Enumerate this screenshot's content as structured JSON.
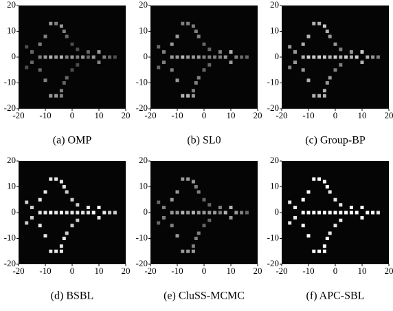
{
  "chart_data": [
    {
      "type": "heatmap",
      "title": "(a) OMP",
      "x": [
        -12,
        -10,
        -8,
        -6,
        -4,
        -2,
        0,
        2,
        4,
        6,
        8,
        12,
        14,
        16,
        -8,
        -6,
        -4,
        -3,
        -2,
        0,
        2,
        -8,
        -6,
        -4,
        -4,
        -3,
        -2,
        0,
        2,
        -10,
        -12,
        -10,
        -12,
        -17,
        -15,
        -15,
        -17,
        10,
        10,
        6
      ],
      "y": [
        0,
        0,
        0,
        0,
        0,
        0,
        0,
        0,
        0,
        0,
        0,
        0,
        0,
        0,
        13,
        13,
        12,
        10,
        8,
        5,
        3,
        -15,
        -15,
        -15,
        -13,
        -10,
        -8,
        -5,
        -3,
        8,
        5,
        -9,
        -5,
        4,
        2,
        -2,
        -4,
        2,
        -2,
        2
      ],
      "values": [
        0.5,
        0.6,
        0.7,
        0.6,
        0.7,
        0.5,
        0.6,
        0.5,
        0.6,
        0.4,
        0.6,
        0.5,
        0.4,
        0.3,
        0.6,
        0.5,
        0.6,
        0.5,
        0.4,
        0.3,
        0.3,
        0.6,
        0.6,
        0.5,
        0.5,
        0.4,
        0.4,
        0.3,
        0.3,
        0.5,
        0.5,
        0.5,
        0.4,
        0.3,
        0.4,
        0.4,
        0.3,
        0.6,
        0.5,
        0.4
      ],
      "xlim": [
        -20,
        20
      ],
      "ylim": [
        -20,
        20
      ],
      "xticks": [
        -20,
        -10,
        0,
        10,
        20
      ],
      "yticks": [
        -20,
        -10,
        0,
        10,
        20
      ]
    },
    {
      "type": "heatmap",
      "title": "(b) SL0",
      "x": [
        -12,
        -10,
        -8,
        -6,
        -4,
        -2,
        0,
        2,
        4,
        6,
        8,
        12,
        14,
        16,
        -8,
        -6,
        -4,
        -3,
        -2,
        0,
        2,
        -8,
        -6,
        -4,
        -4,
        -3,
        -2,
        0,
        2,
        -10,
        -12,
        -10,
        -12,
        -17,
        -15,
        -15,
        -17,
        10,
        10,
        6
      ],
      "y": [
        0,
        0,
        0,
        0,
        0,
        0,
        0,
        0,
        0,
        0,
        0,
        0,
        0,
        0,
        13,
        13,
        12,
        10,
        8,
        5,
        3,
        -15,
        -15,
        -15,
        -13,
        -10,
        -8,
        -5,
        -3,
        8,
        5,
        -9,
        -5,
        4,
        2,
        -2,
        -4,
        2,
        -2,
        2
      ],
      "values": [
        0.6,
        0.6,
        0.7,
        0.6,
        0.6,
        0.6,
        0.5,
        0.5,
        0.5,
        0.5,
        0.6,
        0.5,
        0.4,
        0.4,
        0.5,
        0.5,
        0.5,
        0.5,
        0.5,
        0.4,
        0.4,
        0.7,
        0.7,
        0.6,
        0.5,
        0.5,
        0.5,
        0.4,
        0.4,
        0.6,
        0.6,
        0.6,
        0.5,
        0.4,
        0.5,
        0.5,
        0.4,
        0.7,
        0.6,
        0.5
      ],
      "xlim": [
        -20,
        20
      ],
      "ylim": [
        -20,
        20
      ],
      "xticks": [
        -20,
        -10,
        0,
        10,
        20
      ],
      "yticks": [
        -20,
        -10,
        0,
        10,
        20
      ]
    },
    {
      "type": "heatmap",
      "title": "(c) Group-BP",
      "x": [
        -12,
        -10,
        -8,
        -6,
        -4,
        -2,
        0,
        2,
        4,
        6,
        8,
        12,
        14,
        16,
        -8,
        -6,
        -4,
        -3,
        -2,
        0,
        2,
        -8,
        -6,
        -4,
        -4,
        -3,
        -2,
        0,
        2,
        -10,
        -12,
        -10,
        -12,
        -17,
        -15,
        -15,
        -17,
        10,
        10,
        6
      ],
      "y": [
        0,
        0,
        0,
        0,
        0,
        0,
        0,
        0,
        0,
        0,
        0,
        0,
        0,
        0,
        13,
        13,
        12,
        10,
        8,
        5,
        3,
        -15,
        -15,
        -15,
        -13,
        -10,
        -8,
        -5,
        -3,
        8,
        5,
        -9,
        -5,
        4,
        2,
        -2,
        -4,
        2,
        -2,
        2
      ],
      "values": [
        0.7,
        0.8,
        0.8,
        0.8,
        0.8,
        0.7,
        0.8,
        0.7,
        0.8,
        0.7,
        0.8,
        0.7,
        0.6,
        0.5,
        0.7,
        0.7,
        0.8,
        0.7,
        0.6,
        0.6,
        0.5,
        0.7,
        0.7,
        0.7,
        0.7,
        0.6,
        0.6,
        0.5,
        0.5,
        0.7,
        0.7,
        0.7,
        0.6,
        0.6,
        0.6,
        0.6,
        0.5,
        0.8,
        0.7,
        0.6
      ],
      "xlim": [
        -20,
        20
      ],
      "ylim": [
        -20,
        20
      ],
      "xticks": [
        -20,
        -10,
        0,
        10,
        20
      ],
      "yticks": [
        -20,
        -10,
        0,
        10,
        20
      ]
    },
    {
      "type": "heatmap",
      "title": "(d) BSBL",
      "x": [
        -12,
        -10,
        -8,
        -6,
        -4,
        -2,
        0,
        2,
        4,
        6,
        8,
        12,
        14,
        16,
        -8,
        -6,
        -4,
        -3,
        -2,
        0,
        2,
        -8,
        -6,
        -4,
        -4,
        -3,
        -2,
        0,
        2,
        -10,
        -12,
        -10,
        -12,
        -17,
        -15,
        -15,
        -17,
        10,
        10,
        6
      ],
      "y": [
        0,
        0,
        0,
        0,
        0,
        0,
        0,
        0,
        0,
        0,
        0,
        0,
        0,
        0,
        13,
        13,
        12,
        10,
        8,
        5,
        3,
        -15,
        -15,
        -15,
        -13,
        -10,
        -8,
        -5,
        -3,
        8,
        5,
        -9,
        -5,
        4,
        2,
        -2,
        -4,
        2,
        -2,
        2
      ],
      "values": [
        0.9,
        0.9,
        1,
        0.9,
        1,
        0.9,
        0.9,
        0.9,
        0.9,
        0.9,
        1,
        0.9,
        0.8,
        0.8,
        0.9,
        0.9,
        0.9,
        0.9,
        0.8,
        0.8,
        0.8,
        0.9,
        0.9,
        0.9,
        0.9,
        0.9,
        0.8,
        0.8,
        0.8,
        0.9,
        0.9,
        0.9,
        0.9,
        0.8,
        0.8,
        0.8,
        0.8,
        1,
        0.9,
        0.9
      ],
      "xlim": [
        -20,
        20
      ],
      "ylim": [
        -20,
        20
      ],
      "xticks": [
        -20,
        -10,
        0,
        10,
        20
      ],
      "yticks": [
        -20,
        -10,
        0,
        10,
        20
      ]
    },
    {
      "type": "heatmap",
      "title": "(e) CluSS-MCMC",
      "x": [
        -12,
        -10,
        -8,
        -6,
        -4,
        -2,
        0,
        2,
        4,
        6,
        8,
        12,
        14,
        16,
        -8,
        -6,
        -4,
        -3,
        -2,
        0,
        2,
        -8,
        -6,
        -4,
        -4,
        -3,
        -2,
        0,
        2,
        -10,
        -12,
        -10,
        -12,
        -17,
        -15,
        -15,
        -17,
        10,
        10,
        6
      ],
      "y": [
        0,
        0,
        0,
        0,
        0,
        0,
        0,
        0,
        0,
        0,
        0,
        0,
        0,
        0,
        13,
        13,
        12,
        10,
        8,
        5,
        3,
        -15,
        -15,
        -15,
        -13,
        -10,
        -8,
        -5,
        -3,
        8,
        5,
        -9,
        -5,
        4,
        2,
        -2,
        -4,
        2,
        -2,
        2
      ],
      "values": [
        0.6,
        0.6,
        0.7,
        0.6,
        0.7,
        0.6,
        0.6,
        0.6,
        0.6,
        0.5,
        0.7,
        0.6,
        0.5,
        0.4,
        0.6,
        0.6,
        0.6,
        0.5,
        0.5,
        0.4,
        0.4,
        0.6,
        0.6,
        0.6,
        0.5,
        0.5,
        0.5,
        0.4,
        0.4,
        0.6,
        0.6,
        0.6,
        0.5,
        0.4,
        0.5,
        0.5,
        0.4,
        0.7,
        0.6,
        0.5
      ],
      "xlim": [
        -20,
        20
      ],
      "ylim": [
        -20,
        20
      ],
      "xticks": [
        -20,
        -10,
        0,
        10,
        20
      ],
      "yticks": [
        -20,
        -10,
        0,
        10,
        20
      ]
    },
    {
      "type": "heatmap",
      "title": "(f) APC-SBL",
      "x": [
        -12,
        -10,
        -8,
        -6,
        -4,
        -2,
        0,
        2,
        4,
        6,
        8,
        12,
        14,
        16,
        -8,
        -6,
        -4,
        -3,
        -2,
        0,
        2,
        -8,
        -6,
        -4,
        -4,
        -3,
        -2,
        0,
        2,
        -10,
        -12,
        -10,
        -12,
        -17,
        -15,
        -15,
        -17,
        10,
        10,
        6
      ],
      "y": [
        0,
        0,
        0,
        0,
        0,
        0,
        0,
        0,
        0,
        0,
        0,
        0,
        0,
        0,
        13,
        13,
        12,
        10,
        8,
        5,
        3,
        -15,
        -15,
        -15,
        -13,
        -10,
        -8,
        -5,
        -3,
        8,
        5,
        -9,
        -5,
        4,
        2,
        -2,
        -4,
        2,
        -2,
        2
      ],
      "values": [
        1,
        1,
        1,
        1,
        1,
        1,
        1,
        1,
        1,
        1,
        1,
        1,
        1,
        0.9,
        1,
        1,
        1,
        1,
        0.9,
        0.9,
        0.9,
        1,
        1,
        1,
        1,
        1,
        0.9,
        0.9,
        0.9,
        1,
        1,
        1,
        1,
        0.9,
        0.9,
        0.9,
        0.9,
        1,
        1,
        1
      ],
      "xlim": [
        -20,
        20
      ],
      "ylim": [
        -20,
        20
      ],
      "xticks": [
        -20,
        -10,
        0,
        10,
        20
      ],
      "yticks": [
        -20,
        -10,
        0,
        10,
        20
      ]
    }
  ]
}
